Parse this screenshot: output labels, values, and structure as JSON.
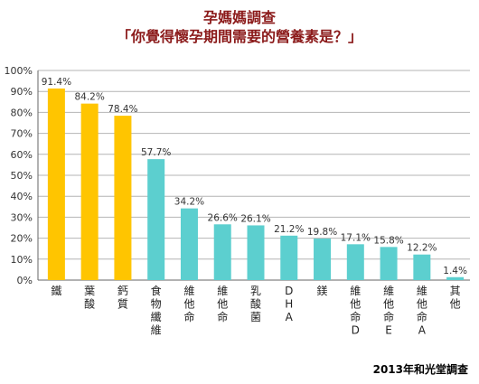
{
  "title_line1": "孕媽媽調查",
  "title_line2": "「你覺得懷孕期間需要的營養素是？」",
  "source": "2013年和光堂調查",
  "colors": {
    "highlight": "#ffc500",
    "normal": "#5ccfcf",
    "grid": "#b4b4b4",
    "axis": "#666666"
  },
  "chart_data": {
    "type": "bar",
    "categories": [
      "鐵",
      "葉酸",
      "鈣質",
      "食物纖維",
      "維他命",
      "維他命",
      "乳酸菌",
      "DHA",
      "鎂",
      "維他命D",
      "維他命E",
      "維他命A",
      "其他"
    ],
    "values": [
      91.4,
      84.2,
      78.4,
      57.7,
      34.2,
      26.6,
      26.1,
      21.2,
      19.8,
      17.1,
      15.8,
      12.2,
      1.4
    ],
    "value_labels": [
      "91.4%",
      "84.2%",
      "78.4%",
      "57.7%",
      "34.2%",
      "26.6%",
      "26.1%",
      "21.2%",
      "19.8%",
      "17.1%",
      "15.8%",
      "12.2%",
      "1.4%"
    ],
    "highlight_count": 3,
    "ylim": [
      0,
      100
    ],
    "yticks": [
      "0%",
      "10%",
      "20%",
      "30%",
      "40%",
      "50%",
      "60%",
      "70%",
      "80%",
      "90%",
      "100%"
    ],
    "grid": true,
    "legend": "none"
  }
}
